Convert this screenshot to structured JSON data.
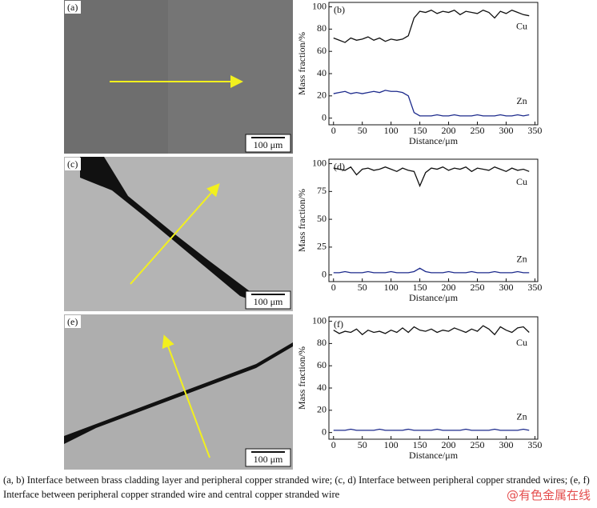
{
  "panels": [
    {
      "label": "(a)",
      "scale": "100 μm"
    },
    {
      "label": "(c)",
      "scale": "100 μm"
    },
    {
      "label": "(e)",
      "scale": "100 μm"
    }
  ],
  "caption": "(a, b) Interface between brass cladding layer and peripheral copper stranded wire; (c, d) Interface between peripheral copper stranded wires; (e, f) Interface between peripheral copper stranded wire and central copper stranded wire",
  "watermark": "@有色金属在线",
  "chart_data": [
    {
      "type": "line",
      "title": "(b)",
      "x_label": "Distance/μm",
      "y_label": "Mass fraction/%",
      "x": [
        0,
        10,
        20,
        30,
        40,
        50,
        60,
        70,
        80,
        90,
        100,
        110,
        120,
        130,
        140,
        150,
        160,
        170,
        180,
        190,
        200,
        210,
        220,
        230,
        240,
        250,
        260,
        270,
        280,
        290,
        300,
        310,
        320,
        330,
        340
      ],
      "series": [
        {
          "name": "Cu",
          "color": "#111111",
          "values": [
            72,
            70,
            68,
            72,
            70,
            71,
            73,
            70,
            72,
            69,
            71,
            70,
            71,
            74,
            90,
            96,
            95,
            97,
            94,
            96,
            95,
            97,
            93,
            96,
            95,
            94,
            97,
            95,
            90,
            96,
            94,
            97,
            95,
            93,
            92
          ]
        },
        {
          "name": "Zn",
          "color": "#1c2a8c",
          "values": [
            22,
            23,
            24,
            22,
            23,
            22,
            23,
            24,
            23,
            25,
            24,
            24,
            23,
            20,
            5,
            2,
            2,
            2,
            3,
            2,
            2,
            3,
            2,
            2,
            2,
            3,
            2,
            2,
            2,
            3,
            2,
            2,
            3,
            2,
            3
          ]
        }
      ],
      "xlim": [
        -8,
        355
      ],
      "xticks": [
        0,
        50,
        100,
        150,
        200,
        250,
        300,
        350
      ],
      "ylim": [
        -6,
        104
      ],
      "yticks": [
        0,
        20,
        40,
        60,
        80,
        100
      ]
    },
    {
      "type": "line",
      "title": "(d)",
      "x_label": "Distance/μm",
      "y_label": "Mass fraction/%",
      "x": [
        0,
        10,
        20,
        30,
        40,
        50,
        60,
        70,
        80,
        90,
        100,
        110,
        120,
        130,
        140,
        150,
        160,
        170,
        180,
        190,
        200,
        210,
        220,
        230,
        240,
        250,
        260,
        270,
        280,
        290,
        300,
        310,
        320,
        330,
        340
      ],
      "series": [
        {
          "name": "Cu",
          "color": "#111111",
          "values": [
            96,
            95,
            94,
            97,
            90,
            95,
            96,
            94,
            95,
            97,
            95,
            93,
            96,
            94,
            93,
            80,
            92,
            96,
            95,
            97,
            94,
            96,
            95,
            97,
            93,
            96,
            95,
            94,
            97,
            95,
            93,
            96,
            94,
            95,
            93
          ]
        },
        {
          "name": "Zn",
          "color": "#1c2a8c",
          "values": [
            2,
            2,
            3,
            2,
            2,
            2,
            3,
            2,
            2,
            2,
            3,
            2,
            2,
            2,
            3,
            6,
            3,
            2,
            2,
            2,
            3,
            2,
            2,
            2,
            3,
            2,
            2,
            2,
            3,
            2,
            2,
            2,
            3,
            2,
            2
          ]
        }
      ],
      "xlim": [
        -8,
        355
      ],
      "xticks": [
        0,
        50,
        100,
        150,
        200,
        250,
        300,
        350
      ],
      "ylim": [
        -6,
        104
      ],
      "yticks": [
        0,
        25,
        50,
        75,
        100
      ]
    },
    {
      "type": "line",
      "title": "(f)",
      "x_label": "Distance/μm",
      "y_label": "Mass fraction/%",
      "x": [
        0,
        10,
        20,
        30,
        40,
        50,
        60,
        70,
        80,
        90,
        100,
        110,
        120,
        130,
        140,
        150,
        160,
        170,
        180,
        190,
        200,
        210,
        220,
        230,
        240,
        250,
        260,
        270,
        280,
        290,
        300,
        310,
        320,
        330,
        340
      ],
      "series": [
        {
          "name": "Cu",
          "color": "#111111",
          "values": [
            92,
            89,
            91,
            90,
            93,
            88,
            92,
            90,
            91,
            89,
            92,
            90,
            94,
            90,
            95,
            92,
            91,
            93,
            90,
            92,
            91,
            94,
            92,
            90,
            93,
            91,
            96,
            93,
            88,
            95,
            92,
            90,
            94,
            95,
            90
          ]
        },
        {
          "name": "Zn",
          "color": "#1c2a8c",
          "values": [
            2,
            2,
            2,
            3,
            2,
            2,
            2,
            2,
            3,
            2,
            2,
            2,
            2,
            3,
            2,
            2,
            2,
            2,
            3,
            2,
            2,
            2,
            2,
            3,
            2,
            2,
            2,
            2,
            3,
            2,
            2,
            2,
            2,
            3,
            2
          ]
        }
      ],
      "xlim": [
        -8,
        355
      ],
      "xticks": [
        0,
        50,
        100,
        150,
        200,
        250,
        300,
        350
      ],
      "ylim": [
        -6,
        104
      ],
      "yticks": [
        0,
        20,
        40,
        60,
        80,
        100
      ]
    }
  ]
}
